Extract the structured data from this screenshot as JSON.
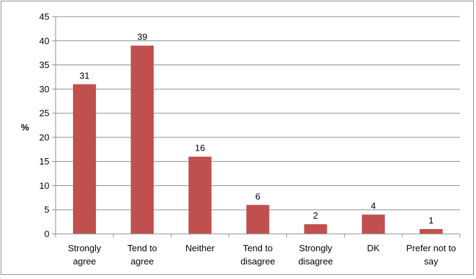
{
  "chart_data": {
    "type": "bar",
    "title": "",
    "xlabel": "",
    "ylabel": "%",
    "ylim": [
      0,
      45
    ],
    "yticks": [
      0,
      5,
      10,
      15,
      20,
      25,
      30,
      35,
      40,
      45
    ],
    "grid": true,
    "legend": "none",
    "bar_color": "#c0504d",
    "categories": [
      [
        "Strongly",
        "agree"
      ],
      [
        "Tend to",
        "agree"
      ],
      [
        "Neither"
      ],
      [
        "Tend to",
        "disagree"
      ],
      [
        "Strongly",
        "disagree"
      ],
      [
        "DK"
      ],
      [
        "Prefer not to",
        "say"
      ]
    ],
    "values": [
      31,
      39,
      16,
      6,
      2,
      4,
      1
    ]
  }
}
